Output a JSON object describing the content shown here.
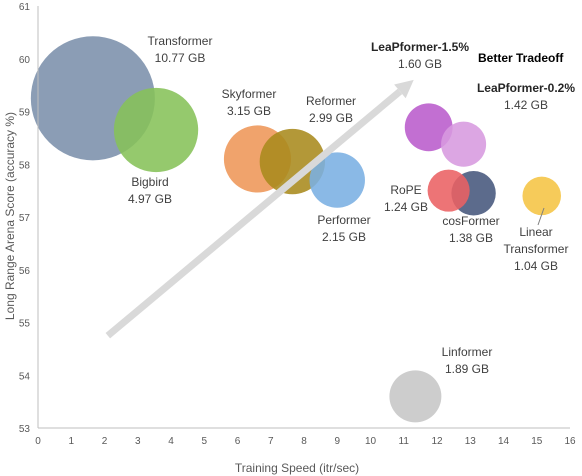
{
  "chart_data": {
    "type": "scatter",
    "title": "",
    "xlabel": "Training Speed (itr/sec)",
    "ylabel": "Long Range Arena Score (accuracy %)",
    "xlim": [
      0,
      16
    ],
    "ylim": [
      53,
      61
    ],
    "xticks": [
      "0",
      "1",
      "2",
      "3",
      "4",
      "5",
      "6",
      "7",
      "8",
      "9",
      "10",
      "11",
      "12",
      "13",
      "14",
      "15",
      "16"
    ],
    "yticks": [
      "53",
      "54",
      "55",
      "56",
      "57",
      "58",
      "59",
      "60",
      "61"
    ],
    "grid": false,
    "legend": "none",
    "bubble_unit": "GB",
    "points": [
      {
        "name": "Transformer",
        "size_label": "10.77 GB",
        "x": 1.65,
        "y": 59.25,
        "size": 10.77,
        "color": "#7b8fab",
        "bold": false
      },
      {
        "name": "Bigbird",
        "size_label": "4.97 GB",
        "x": 3.55,
        "y": 58.65,
        "size": 4.97,
        "color": "#86c159",
        "bold": false
      },
      {
        "name": "Skyformer",
        "size_label": "3.15 GB",
        "x": 6.6,
        "y": 58.1,
        "size": 3.15,
        "color": "#ee9658",
        "bold": false
      },
      {
        "name": "Reformer",
        "size_label": "2.99 GB",
        "x": 7.65,
        "y": 58.05,
        "size": 2.99,
        "color": "#a88a1c",
        "bold": false
      },
      {
        "name": "Performer",
        "size_label": "2.15 GB",
        "x": 9.0,
        "y": 57.7,
        "size": 2.15,
        "color": "#7aafe2",
        "bold": false
      },
      {
        "name": "LeaPformer-1.5%",
        "size_label": "1.60 GB",
        "x": 11.75,
        "y": 58.7,
        "size": 1.6,
        "color": "#b95bcc",
        "bold": true
      },
      {
        "name": "LeaPformer-0.2%",
        "size_label": "1.42 GB",
        "x": 12.8,
        "y": 58.38,
        "size": 1.42,
        "color": "#d79adf",
        "bold": true
      },
      {
        "name": "RoPE",
        "size_label": "1.24 GB",
        "x": 12.35,
        "y": 57.5,
        "size": 1.24,
        "color": "#ea6163",
        "bold": false
      },
      {
        "name": "cosFormer",
        "size_label": "1.38 GB",
        "x": 13.1,
        "y": 57.45,
        "size": 1.38,
        "color": "#45577c",
        "bold": false
      },
      {
        "name": "Linear Transformer",
        "size_label": "1.04 GB",
        "x": 15.15,
        "y": 57.4,
        "size": 1.04,
        "color": "#f5c443",
        "bold": false
      },
      {
        "name": "Linformer",
        "size_label": "1.89 GB",
        "x": 11.35,
        "y": 53.6,
        "size": 1.89,
        "color": "#c6c6c6",
        "bold": false
      }
    ],
    "annotations": [
      {
        "text": "Better Tradeoff",
        "arrow_from": [
          2.1,
          54.75
        ],
        "arrow_to": [
          11.3,
          59.6
        ]
      }
    ]
  }
}
